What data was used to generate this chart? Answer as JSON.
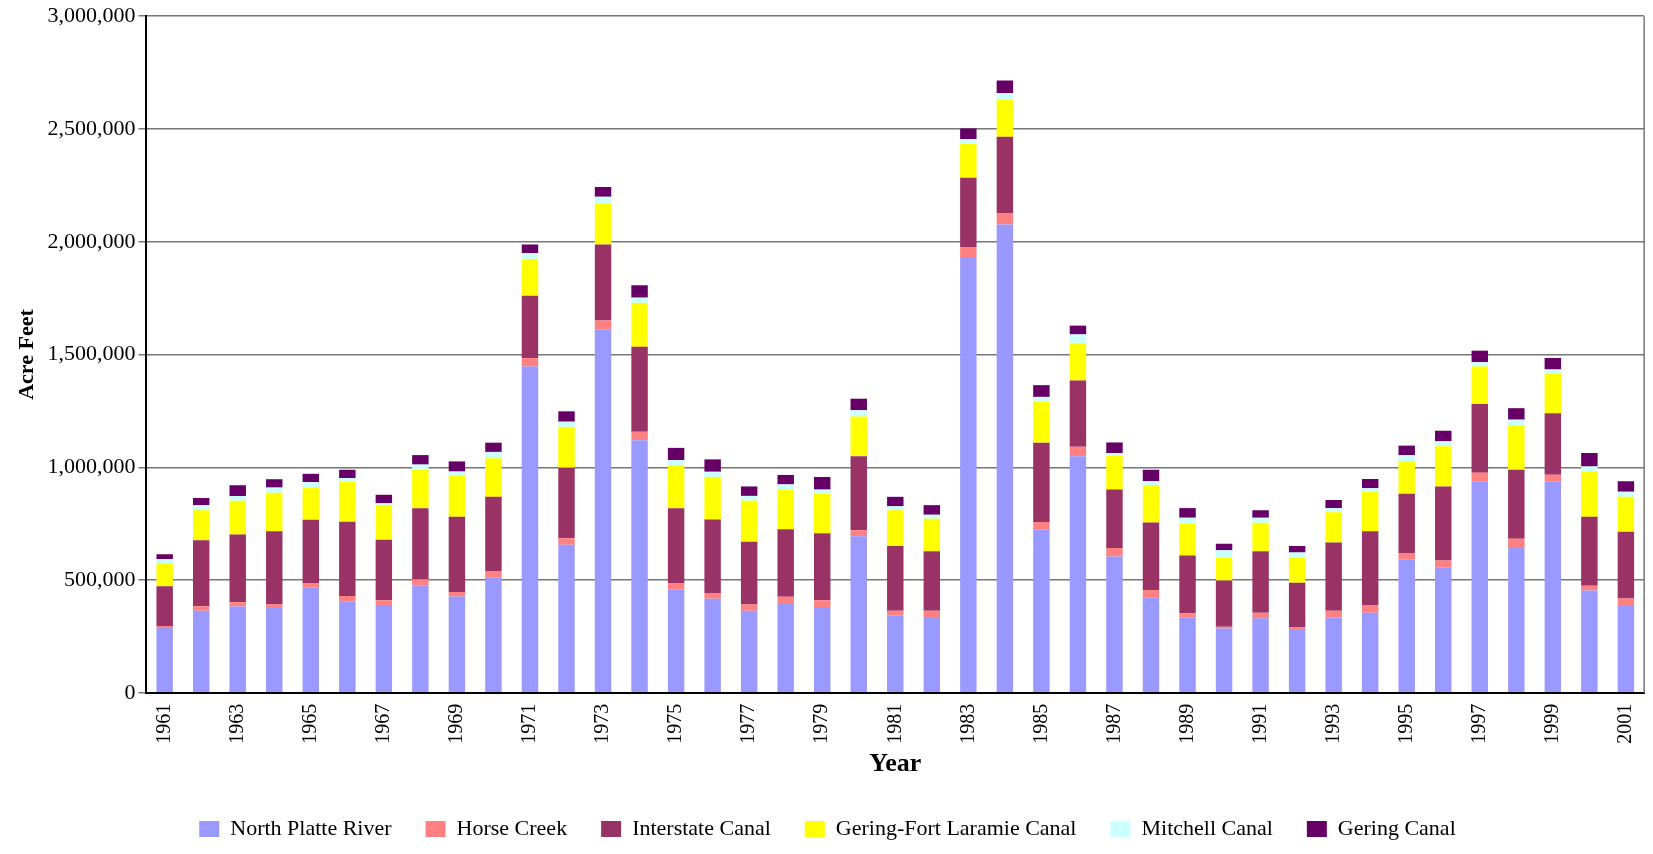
{
  "chart_data": {
    "type": "bar",
    "stacked": true,
    "xlabel": "Year",
    "ylabel": "Acre Feet",
    "categories": [
      "1961",
      null,
      "1963",
      null,
      "1965",
      null,
      "1967",
      null,
      "1969",
      null,
      "1971",
      null,
      "1973",
      null,
      "1975",
      null,
      "1977",
      null,
      "1979",
      null,
      "1981",
      null,
      "1983",
      null,
      "1985",
      null,
      "1987",
      null,
      "1989",
      null,
      "1991",
      null,
      "1993",
      null,
      "1995",
      null,
      "1997",
      null,
      "1999",
      null,
      "2001"
    ],
    "series": [
      {
        "name": "North Platte River",
        "color": "#9999ff",
        "values": [
          287000,
          364000,
          383000,
          380000,
          466000,
          406000,
          389000,
          475000,
          427000,
          512000,
          1447000,
          657000,
          1612000,
          1120000,
          457000,
          417000,
          364000,
          398000,
          380000,
          694000,
          342000,
          336000,
          1928000,
          2076000,
          725000,
          1049000,
          604000,
          422000,
          334000,
          285000,
          331000,
          279000,
          334000,
          355000,
          592000,
          554000,
          938000,
          647000,
          938000,
          454000,
          385000
        ]
      },
      {
        "name": "Horse Creek",
        "color": "#ff8080",
        "values": [
          9000,
          20000,
          18000,
          12000,
          19000,
          23000,
          21000,
          28000,
          20000,
          28000,
          37000,
          28000,
          39000,
          37000,
          28000,
          26000,
          28000,
          28000,
          30000,
          27000,
          22000,
          28000,
          49000,
          51000,
          32000,
          42000,
          38000,
          34000,
          19000,
          8000,
          24000,
          11000,
          30000,
          34000,
          28000,
          33000,
          38000,
          36000,
          29000,
          21000,
          33000
        ]
      },
      {
        "name": "Interstate Canal",
        "color": "#993366",
        "values": [
          176000,
          292000,
          301000,
          324000,
          282000,
          329000,
          269000,
          315000,
          334000,
          329000,
          277000,
          313000,
          337000,
          377000,
          333000,
          325000,
          278000,
          299000,
          297000,
          328000,
          287000,
          264000,
          307000,
          338000,
          352000,
          294000,
          259000,
          299000,
          256000,
          205000,
          273000,
          198000,
          302000,
          327000,
          263000,
          328000,
          305000,
          306000,
          273000,
          306000,
          296000
        ]
      },
      {
        "name": "Gering-Fort Laramie Canal",
        "color": "#ffff00",
        "values": [
          102000,
          133000,
          150000,
          171000,
          143000,
          177000,
          154000,
          171000,
          182000,
          171000,
          163000,
          181000,
          180000,
          195000,
          191000,
          189000,
          182000,
          176000,
          176000,
          176000,
          158000,
          144000,
          149000,
          166000,
          181000,
          165000,
          149000,
          165000,
          140000,
          102000,
          126000,
          112000,
          135000,
          174000,
          144000,
          178000,
          166000,
          196000,
          175000,
          200000,
          155000
        ]
      },
      {
        "name": "Mitchell Canal",
        "color": "#ccffff",
        "values": [
          19000,
          23000,
          21000,
          23000,
          24000,
          17000,
          8000,
          23000,
          18000,
          28000,
          25000,
          23000,
          31000,
          23000,
          23000,
          23000,
          21000,
          23000,
          18000,
          28000,
          18000,
          18000,
          23000,
          27000,
          22000,
          39000,
          13000,
          18000,
          27000,
          32000,
          22000,
          22000,
          18000,
          17000,
          27000,
          22000,
          19000,
          26000,
          18000,
          22000,
          22000
        ]
      },
      {
        "name": "Gering Canal",
        "color": "#660066",
        "values": [
          21000,
          32000,
          47000,
          37000,
          37000,
          37000,
          37000,
          42000,
          45000,
          41000,
          39000,
          46000,
          44000,
          55000,
          54000,
          55000,
          42000,
          42000,
          56000,
          51000,
          42000,
          42000,
          46000,
          57000,
          52000,
          39000,
          47000,
          51000,
          43000,
          29000,
          33000,
          29000,
          36000,
          41000,
          42000,
          47000,
          51000,
          51000,
          52000,
          60000,
          47000
        ]
      }
    ],
    "ylim": [
      0,
      3000000
    ],
    "yticks": [
      0,
      {
        "value": 500000,
        "label": "500,000"
      },
      {
        "value": 1000000,
        "label": "1,000,000"
      },
      {
        "value": 1500000,
        "label": "1,500,000"
      },
      {
        "value": 2000000,
        "label": "2,000,000"
      },
      {
        "value": 2500000,
        "label": "2,500,000"
      },
      {
        "value": 3000000,
        "label": "3,000,000"
      }
    ],
    "grid": "y",
    "legend": "bottom"
  }
}
